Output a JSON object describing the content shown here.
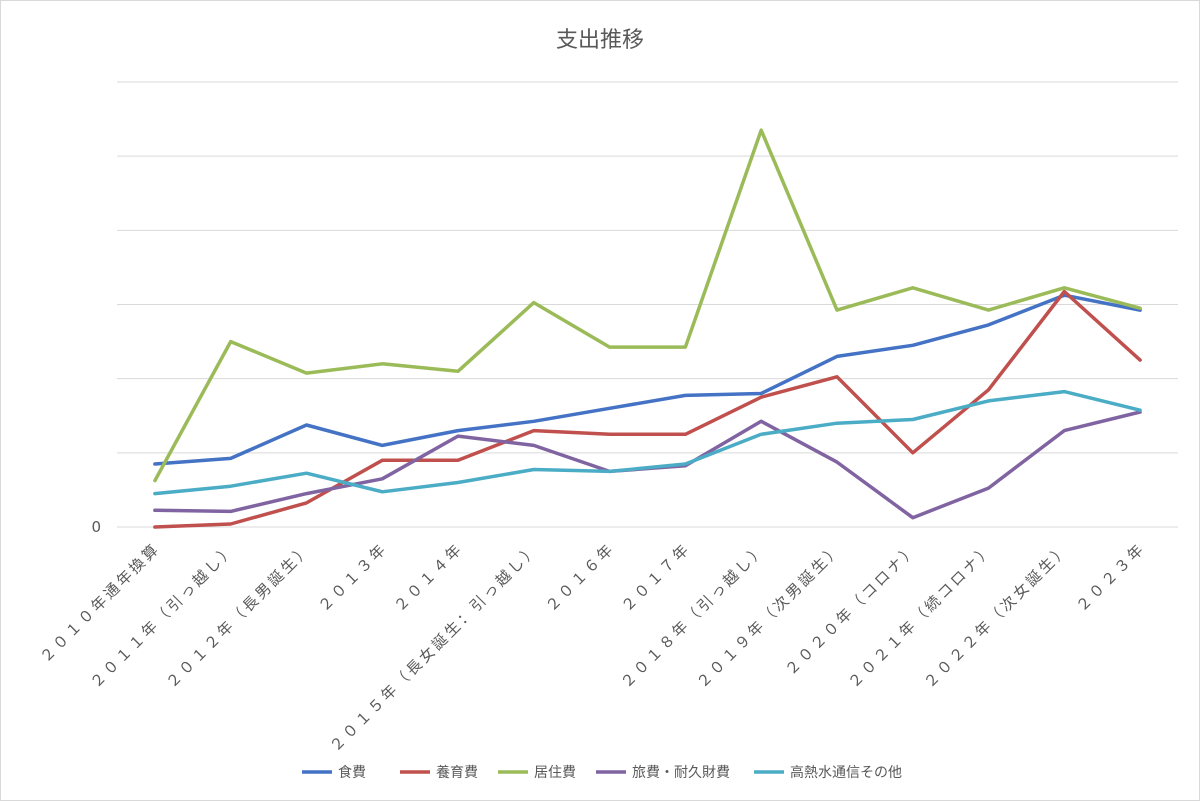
{
  "chart_data": {
    "type": "line",
    "title": "支出推移",
    "xlabel": "",
    "ylabel": "",
    "ylim": [
      0,
      12
    ],
    "y_tick_labels": [
      "0"
    ],
    "grid": true,
    "legend_position": "bottom",
    "categories": [
      "２０１０年通年換算",
      "２０１１年（引っ越し）",
      "２０１２年（長男誕生）",
      "２０１３年",
      "２０１４年",
      "２０１５年（長女誕生：引っ越し）",
      "２０１６年",
      "２０１７年",
      "２０１８年（引っ越し）",
      "２０１９年（次男誕生）",
      "２０２０年（コロナ）",
      "２０２１年（続コロナ）",
      "２０２２年（次女誕生）",
      "２０２３年"
    ],
    "series": [
      {
        "name": "食費",
        "color": "#4472C4",
        "values": [
          1.7,
          1.85,
          2.75,
          2.2,
          2.6,
          2.85,
          3.2,
          3.55,
          3.6,
          4.6,
          4.9,
          5.45,
          6.25,
          5.85
        ]
      },
      {
        "name": "養育費",
        "color": "#C0504D",
        "values": [
          0.0,
          0.08,
          0.65,
          1.8,
          1.8,
          2.6,
          2.5,
          2.5,
          3.5,
          4.05,
          2.0,
          3.7,
          6.35,
          4.5
        ]
      },
      {
        "name": "居住費",
        "color": "#9BBB59",
        "values": [
          1.25,
          5.0,
          4.15,
          4.4,
          4.2,
          6.05,
          4.85,
          4.85,
          10.7,
          5.85,
          6.45,
          5.85,
          6.45,
          5.9
        ]
      },
      {
        "name": "旅費・耐久財費",
        "color": "#8064A2",
        "values": [
          0.45,
          0.42,
          0.9,
          1.3,
          2.45,
          2.2,
          1.5,
          1.65,
          2.85,
          1.75,
          0.25,
          1.05,
          2.6,
          3.1
        ]
      },
      {
        "name": "高熱水通信その他",
        "color": "#4BACC6",
        "values": [
          0.9,
          1.1,
          1.45,
          0.95,
          1.2,
          1.55,
          1.5,
          1.7,
          2.5,
          2.8,
          2.9,
          3.4,
          3.65,
          3.15
        ]
      }
    ]
  }
}
